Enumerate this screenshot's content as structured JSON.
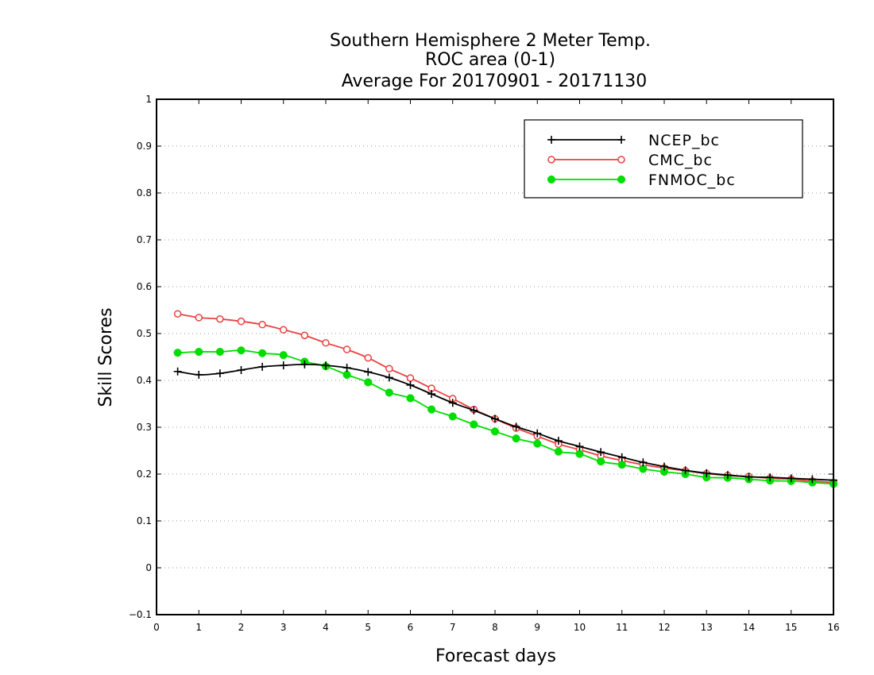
{
  "chart_data": {
    "type": "line",
    "title": [
      "Southern Hemisphere 2 Meter Temp.",
      "ROC area (0-1)",
      "Average For 20170901 - 20171130"
    ],
    "xlabel": "Forecast days",
    "ylabel": "Skill Scores",
    "xlim": [
      0,
      16
    ],
    "ylim": [
      -0.1,
      1
    ],
    "xticks": [
      0,
      1,
      2,
      3,
      4,
      5,
      6,
      7,
      8,
      9,
      10,
      11,
      12,
      13,
      14,
      15,
      16
    ],
    "yticks": [
      -0.1,
      0,
      0.1,
      0.2,
      0.3,
      0.4,
      0.5,
      0.6,
      0.7,
      0.8,
      0.9,
      1
    ],
    "ytick_labels": [
      "−0.1",
      "0",
      "0.1",
      "0.2",
      "0.3",
      "0.4",
      "0.5",
      "0.6",
      "0.7",
      "0.8",
      "0.9",
      "1"
    ],
    "grid": "horizontal dotted",
    "legend_position": "top-right",
    "x": [
      0.5,
      1,
      1.5,
      2,
      2.5,
      3,
      3.5,
      4,
      4.5,
      5,
      5.5,
      6,
      6.5,
      7,
      7.5,
      8,
      8.5,
      9,
      9.5,
      10,
      10.5,
      11,
      11.5,
      12,
      12.5,
      13,
      13.5,
      14,
      14.5,
      15,
      15.5,
      16
    ],
    "series": [
      {
        "name": "NCEP_bc",
        "color": "#000000",
        "marker": "plus",
        "values": [
          0.419,
          0.412,
          0.415,
          0.422,
          0.429,
          0.432,
          0.434,
          0.432,
          0.427,
          0.418,
          0.406,
          0.39,
          0.371,
          0.352,
          0.336,
          0.318,
          0.301,
          0.287,
          0.271,
          0.259,
          0.247,
          0.236,
          0.225,
          0.216,
          0.208,
          0.202,
          0.198,
          0.194,
          0.193,
          0.191,
          0.189,
          0.187
        ]
      },
      {
        "name": "CMC_bc",
        "color": "#e8413f",
        "marker": "open-circle",
        "values": [
          0.542,
          0.534,
          0.531,
          0.526,
          0.519,
          0.508,
          0.496,
          0.48,
          0.466,
          0.448,
          0.425,
          0.405,
          0.383,
          0.361,
          0.338,
          0.318,
          0.298,
          0.281,
          0.264,
          0.252,
          0.239,
          0.229,
          0.22,
          0.213,
          0.207,
          0.201,
          0.197,
          0.195,
          0.191,
          0.189,
          0.185,
          0.182
        ]
      },
      {
        "name": "FNMOC_bc",
        "color": "#00dd00",
        "marker": "filled-circle",
        "values": [
          0.459,
          0.461,
          0.461,
          0.464,
          0.458,
          0.454,
          0.44,
          0.43,
          0.412,
          0.396,
          0.374,
          0.362,
          0.338,
          0.323,
          0.306,
          0.291,
          0.276,
          0.265,
          0.248,
          0.243,
          0.227,
          0.22,
          0.211,
          0.205,
          0.2,
          0.193,
          0.192,
          0.189,
          0.186,
          0.185,
          0.182,
          0.179
        ]
      }
    ]
  }
}
